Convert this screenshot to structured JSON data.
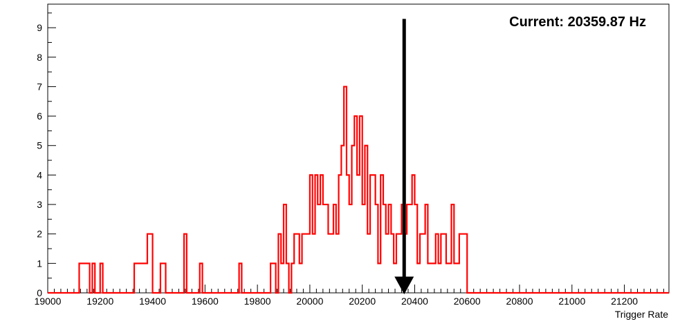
{
  "chart_data": {
    "type": "histogram",
    "title": "",
    "xlabel": "Trigger Rate",
    "ylabel": "",
    "xlim": [
      19000,
      21370
    ],
    "ylim": [
      0,
      9.8
    ],
    "bin_width": 10,
    "x_ticks": [
      19000,
      19200,
      19400,
      19600,
      19800,
      20000,
      20200,
      20400,
      20600,
      20800,
      21000,
      21200
    ],
    "y_ticks": [
      0,
      1,
      2,
      3,
      4,
      5,
      6,
      7,
      8,
      9
    ],
    "annotation": "Current: 20359.87 Hz",
    "marker_value": 20359.87,
    "line_color": "#ff0000",
    "marker_color": "#000000",
    "bins": [
      [
        19120,
        1
      ],
      [
        19130,
        1
      ],
      [
        19140,
        1
      ],
      [
        19150,
        1
      ],
      [
        19170,
        1
      ],
      [
        19200,
        1
      ],
      [
        19330,
        1
      ],
      [
        19340,
        1
      ],
      [
        19350,
        1
      ],
      [
        19360,
        1
      ],
      [
        19370,
        1
      ],
      [
        19380,
        2
      ],
      [
        19390,
        2
      ],
      [
        19430,
        1
      ],
      [
        19440,
        1
      ],
      [
        19520,
        2
      ],
      [
        19580,
        1
      ],
      [
        19730,
        1
      ],
      [
        19850,
        1
      ],
      [
        19860,
        1
      ],
      [
        19880,
        2
      ],
      [
        19890,
        1
      ],
      [
        19900,
        3
      ],
      [
        19910,
        1
      ],
      [
        19930,
        1
      ],
      [
        19940,
        2
      ],
      [
        19950,
        2
      ],
      [
        19960,
        1
      ],
      [
        19970,
        2
      ],
      [
        19980,
        2
      ],
      [
        19990,
        2
      ],
      [
        20000,
        4
      ],
      [
        20010,
        2
      ],
      [
        20020,
        4
      ],
      [
        20030,
        3
      ],
      [
        20040,
        4
      ],
      [
        20050,
        3
      ],
      [
        20060,
        3
      ],
      [
        20070,
        2
      ],
      [
        20080,
        2
      ],
      [
        20090,
        3
      ],
      [
        20100,
        2
      ],
      [
        20110,
        4
      ],
      [
        20120,
        5
      ],
      [
        20130,
        7
      ],
      [
        20140,
        4
      ],
      [
        20150,
        3
      ],
      [
        20160,
        5
      ],
      [
        20170,
        6
      ],
      [
        20180,
        4
      ],
      [
        20190,
        6
      ],
      [
        20200,
        3
      ],
      [
        20210,
        5
      ],
      [
        20220,
        2
      ],
      [
        20230,
        4
      ],
      [
        20240,
        4
      ],
      [
        20250,
        3
      ],
      [
        20260,
        1
      ],
      [
        20270,
        4
      ],
      [
        20280,
        3
      ],
      [
        20290,
        2
      ],
      [
        20300,
        3
      ],
      [
        20310,
        2
      ],
      [
        20320,
        1
      ],
      [
        20330,
        2
      ],
      [
        20340,
        2
      ],
      [
        20350,
        3
      ],
      [
        20360,
        2
      ],
      [
        20370,
        3
      ],
      [
        20380,
        3
      ],
      [
        20390,
        4
      ],
      [
        20400,
        3
      ],
      [
        20410,
        1
      ],
      [
        20420,
        2
      ],
      [
        20430,
        2
      ],
      [
        20440,
        3
      ],
      [
        20450,
        1
      ],
      [
        20460,
        1
      ],
      [
        20470,
        1
      ],
      [
        20480,
        2
      ],
      [
        20490,
        1
      ],
      [
        20500,
        2
      ],
      [
        20510,
        2
      ],
      [
        20520,
        1
      ],
      [
        20530,
        1
      ],
      [
        20540,
        3
      ],
      [
        20550,
        1
      ],
      [
        20560,
        1
      ],
      [
        20570,
        2
      ],
      [
        20580,
        2
      ],
      [
        20590,
        2
      ]
    ]
  }
}
